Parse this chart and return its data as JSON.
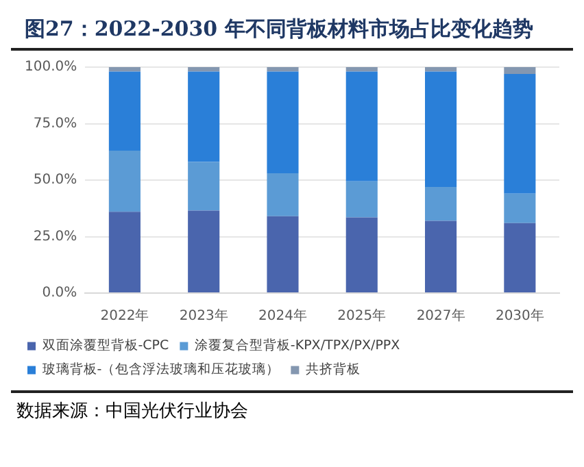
{
  "chart_data": {
    "type": "bar",
    "title": "图27：2022-2030 年不同背板材料市场占比变化趋势",
    "categories": [
      "2022年",
      "2023年",
      "2024年",
      "2025年",
      "2027年",
      "2030年"
    ],
    "stacked": true,
    "series": [
      {
        "name": "双面涂覆型背板-CPC",
        "color": "#4a65ad",
        "values": [
          36,
          36.5,
          34,
          33.5,
          32,
          31
        ]
      },
      {
        "name": "涂覆复合型背板-KPX/TPX/PX/PPX",
        "color": "#5b9bd5",
        "values": [
          27,
          21.5,
          19,
          16,
          15,
          13
        ]
      },
      {
        "name": "玻璃背板-（包含浮法玻璃和压花玻璃）",
        "color": "#2a7fd8",
        "values": [
          35,
          40,
          45,
          48.5,
          51,
          53
        ]
      },
      {
        "name": "共挤背板",
        "color": "#8497b0",
        "values": [
          2,
          2,
          2,
          2,
          2,
          3
        ]
      }
    ],
    "ylim": [
      0,
      100
    ],
    "yticks": [
      {
        "value": 0,
        "label": "0.0%"
      },
      {
        "value": 25,
        "label": "25.0%"
      },
      {
        "value": 50,
        "label": "50.0%"
      },
      {
        "value": 75,
        "label": "75.0%"
      },
      {
        "value": 100,
        "label": "100.0%"
      }
    ],
    "grid": "y",
    "legend": "bottom",
    "annotations": [
      "数据来源：中国光伏行业协会"
    ]
  }
}
